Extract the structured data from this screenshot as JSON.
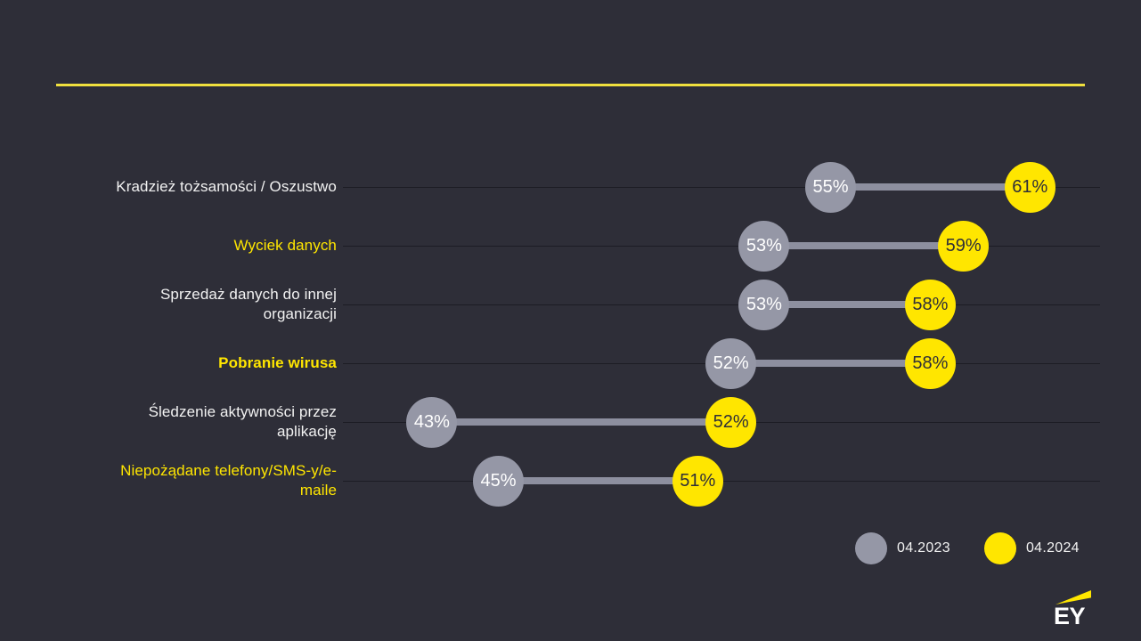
{
  "page": {
    "background": "#2e2e38",
    "accent": "#ffe600",
    "divider_color": "#f0e03e",
    "axis_line_color": "#1c1c24",
    "text_color": "#f2f2f2"
  },
  "logo": {
    "text": "EY"
  },
  "chart_data": {
    "type": "dumbbell",
    "title": "",
    "value_suffix": "%",
    "categories": [
      {
        "label": "Kradzież tożsamości / Oszustwo",
        "highlight": false,
        "bold": false
      },
      {
        "label": "Wyciek danych",
        "highlight": true,
        "bold": false
      },
      {
        "label": "Sprzedaż danych do innej organizacji",
        "highlight": false,
        "bold": false
      },
      {
        "label": "Pobranie wirusa",
        "highlight": true,
        "bold": true
      },
      {
        "label": "Śledzenie aktywności przez aplikację",
        "highlight": false,
        "bold": false
      },
      {
        "label": "Niepożądane telefony/SMS-y/e-maile",
        "highlight": true,
        "bold": false
      }
    ],
    "series": [
      {
        "name": "04.2023",
        "color": "#9597a6",
        "values": [
          55,
          53,
          53,
          52,
          43,
          45
        ]
      },
      {
        "name": "04.2024",
        "color": "#ffe600",
        "values": [
          61,
          59,
          58,
          58,
          52,
          51
        ]
      }
    ],
    "legend": [
      {
        "label": "04.2023",
        "color": "#9597a6"
      },
      {
        "label": "04.2024",
        "color": "#ffe600"
      }
    ],
    "layout_hints": {
      "xlim_pct": [
        40,
        65
      ],
      "grid": false,
      "legend_position": "bottom-right",
      "row_baseline_lines": true
    }
  }
}
